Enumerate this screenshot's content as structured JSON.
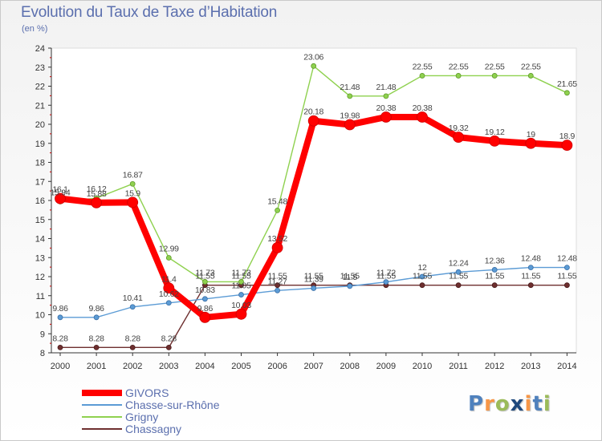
{
  "chart_data": {
    "type": "line",
    "title": "Evolution du Taux de Taxe d’Habitation",
    "subtitle": "(en %)",
    "x": [
      "2000",
      "2001",
      "2002",
      "2003",
      "2004",
      "2005",
      "2006",
      "2007",
      "2008",
      "2009",
      "2010",
      "2011",
      "2012",
      "2013",
      "2014"
    ],
    "y_ticks": [
      "8",
      "9",
      "10",
      "11",
      "12",
      "13",
      "14",
      "15",
      "16",
      "17",
      "18",
      "19",
      "20",
      "21",
      "22",
      "23",
      "24"
    ],
    "ylim": [
      8,
      24
    ],
    "grid": false,
    "legend_position": "bottom-left",
    "series": [
      {
        "name": "GIVORS",
        "color": "#ff0000",
        "values": [
          16.1,
          15.88,
          15.9,
          11.4,
          9.86,
          10.03,
          13.52,
          20.18,
          19.98,
          20.38,
          20.38,
          19.32,
          19.12,
          19,
          18.9
        ],
        "labels": [
          "16.1",
          "15.88",
          "15.9",
          "11.4",
          "9.86",
          "10.03",
          "13.52",
          "20.18",
          "19.98",
          "20.38",
          "20.38",
          "19.32",
          "19.12",
          "19",
          "18.9"
        ]
      },
      {
        "name": "Chasse-sur-Rhône",
        "color": "#5b9bd5",
        "values": [
          9.86,
          9.86,
          10.41,
          10.62,
          10.83,
          11.05,
          11.27,
          11.39,
          11.5,
          11.72,
          12,
          12.24,
          12.36,
          12.48,
          12.48
        ],
        "labels": [
          "9.86",
          "9.86",
          "10.41",
          "10.62",
          "10.83",
          "11.05",
          "11.27",
          "11.39",
          "11.5",
          "11.72",
          "12",
          "12.24",
          "12.36",
          "12.48",
          "12.48"
        ]
      },
      {
        "name": "Grigny",
        "color": "#8fd14f",
        "values": [
          15.94,
          16.12,
          16.87,
          12.99,
          11.73,
          11.73,
          15.48,
          23.06,
          21.48,
          21.48,
          22.55,
          22.55,
          22.55,
          22.55,
          21.65
        ],
        "labels": [
          "15.94",
          "16.12",
          "16.87",
          "12.99",
          "11.73",
          "11.73",
          "15.48",
          "23.06",
          "21.48",
          "21.48",
          "22.55",
          "22.55",
          "22.55",
          "22.55",
          "21.65"
        ]
      },
      {
        "name": "Chassagny",
        "color": "#6e2f2f",
        "values": [
          8.28,
          8.28,
          8.28,
          8.28,
          11.55,
          11.55,
          11.55,
          11.55,
          11.55,
          11.55,
          11.55,
          11.55,
          11.55,
          11.55,
          11.55
        ],
        "labels": [
          "8.28",
          "8.28",
          "8.28",
          "8.28",
          "11.55",
          "11.55",
          "11.55",
          "11.55",
          "11.55",
          "11.55",
          "11.55",
          "11.55",
          "11.55",
          "11.55",
          "11.55"
        ]
      }
    ]
  },
  "branding": {
    "logo_text": "Proxiti",
    "logo_colors": [
      "#4f81bd",
      "#f79646",
      "#9bbb59",
      "#1f497d",
      "#f79646",
      "#4f81bd",
      "#9bbb59"
    ]
  }
}
